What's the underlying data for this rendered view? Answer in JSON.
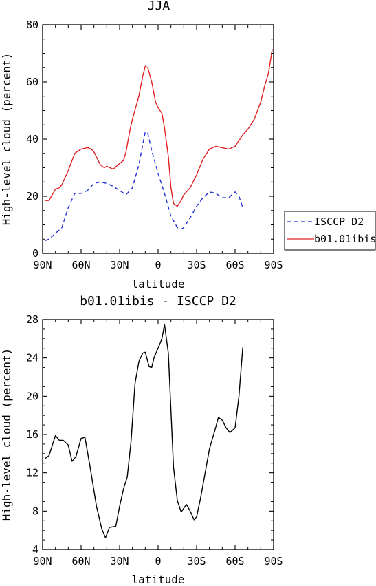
{
  "chart_data": [
    {
      "type": "line",
      "title": "JJA",
      "xlabel": "latitude",
      "ylabel": "High-level cloud (percent)",
      "xlim": [
        90,
        -90
      ],
      "ylim": [
        0,
        80
      ],
      "x_ticks": [
        90,
        60,
        30,
        0,
        -30,
        -60,
        -90
      ],
      "x_tick_labels": [
        "90N",
        "60N",
        "30N",
        "0",
        "30S",
        "60S",
        "90S"
      ],
      "y_ticks": [
        0,
        20,
        40,
        60,
        80
      ],
      "y_tick_labels": [
        "0",
        "20",
        "40",
        "60",
        "80"
      ],
      "legend_position": "right",
      "series": [
        {
          "name": "ISCCP D2",
          "color": "#1f2fd6",
          "dash": "dashed",
          "x": [
            88,
            85,
            80,
            75,
            70,
            65,
            60,
            55,
            50,
            45,
            40,
            35,
            30,
            25,
            20,
            15,
            10,
            8,
            5,
            0,
            -5,
            -10,
            -15,
            -18,
            -20,
            -25,
            -30,
            -35,
            -40,
            -45,
            -50,
            -55,
            -60,
            -63,
            -66
          ],
          "y": [
            4.5,
            5,
            7,
            9,
            16,
            21,
            21,
            22,
            24.5,
            25,
            24.5,
            23.5,
            22,
            20.5,
            23,
            31,
            42.5,
            42,
            36,
            28,
            21,
            13,
            9,
            8.5,
            9,
            12.5,
            16.5,
            19.5,
            21.5,
            21,
            19.5,
            19.5,
            21.5,
            20,
            16
          ]
        },
        {
          "name": "b01.01ibis",
          "color": "#e02020",
          "dash": "solid",
          "x": [
            88,
            85,
            80,
            77,
            75,
            70,
            65,
            60,
            55,
            52,
            50,
            45,
            42,
            40,
            35,
            30,
            27,
            25,
            22,
            20,
            15,
            12,
            10,
            8,
            5,
            2,
            0,
            -3,
            -5,
            -8,
            -10,
            -12,
            -15,
            -18,
            -20,
            -25,
            -30,
            -35,
            -40,
            -45,
            -50,
            -55,
            -60,
            -63,
            -66,
            -70,
            -75,
            -80,
            -83,
            -86,
            -89
          ],
          "y": [
            18.5,
            18.5,
            22.5,
            23,
            24,
            29,
            35,
            36.5,
            37,
            36.5,
            35.5,
            31,
            30,
            30.5,
            29.5,
            31.5,
            32.5,
            35.5,
            43,
            47,
            55,
            62,
            65.5,
            65,
            60,
            53,
            51,
            49,
            44,
            34,
            23,
            17.5,
            16.5,
            18.5,
            20.5,
            23,
            27.5,
            33,
            36.5,
            37.5,
            37,
            36.5,
            37.5,
            39.5,
            41.5,
            43.5,
            47,
            53,
            58.5,
            63,
            71.5
          ]
        }
      ]
    },
    {
      "type": "line",
      "title": "b01.01ibis - ISCCP D2",
      "xlabel": "latitude",
      "ylabel": "High-level cloud (percent)",
      "xlim": [
        90,
        -90
      ],
      "ylim": [
        4,
        28
      ],
      "x_ticks": [
        90,
        60,
        30,
        0,
        -30,
        -60,
        -90
      ],
      "x_tick_labels": [
        "90N",
        "60N",
        "30N",
        "0",
        "30S",
        "60S",
        "90S"
      ],
      "y_ticks": [
        4,
        8,
        12,
        16,
        20,
        24,
        28
      ],
      "y_tick_labels": [
        "4",
        "8",
        "12",
        "16",
        "20",
        "24",
        "28"
      ],
      "series": [
        {
          "color": "#000000",
          "dash": "solid",
          "x": [
            88,
            85,
            80,
            77,
            74,
            70,
            67,
            64,
            60,
            57,
            53,
            48,
            44,
            41,
            38,
            33,
            30,
            27,
            24,
            21,
            18,
            15,
            12,
            10,
            7,
            5,
            3,
            0,
            -3,
            -5,
            -8,
            -10,
            -12,
            -15,
            -18,
            -22,
            -25,
            -28,
            -30,
            -33,
            -36,
            -40,
            -45,
            -47,
            -50,
            -53,
            -56,
            -60,
            -63,
            -66
          ],
          "y": [
            13.5,
            13.8,
            15.9,
            15.4,
            15.4,
            14.9,
            13.2,
            13.7,
            15.6,
            15.7,
            12.6,
            8.5,
            6.2,
            5.2,
            6.3,
            6.4,
            8.5,
            10.3,
            11.6,
            15.4,
            21.3,
            23.6,
            24.5,
            24.6,
            23.1,
            23,
            24.1,
            25,
            26,
            27.5,
            24.5,
            18.5,
            12.6,
            9.1,
            7.9,
            8.7,
            8,
            7.1,
            7.4,
            9.3,
            11.5,
            14.5,
            16.8,
            17.8,
            17.5,
            16.7,
            16.2,
            16.7,
            20,
            25.1
          ]
        }
      ]
    }
  ]
}
